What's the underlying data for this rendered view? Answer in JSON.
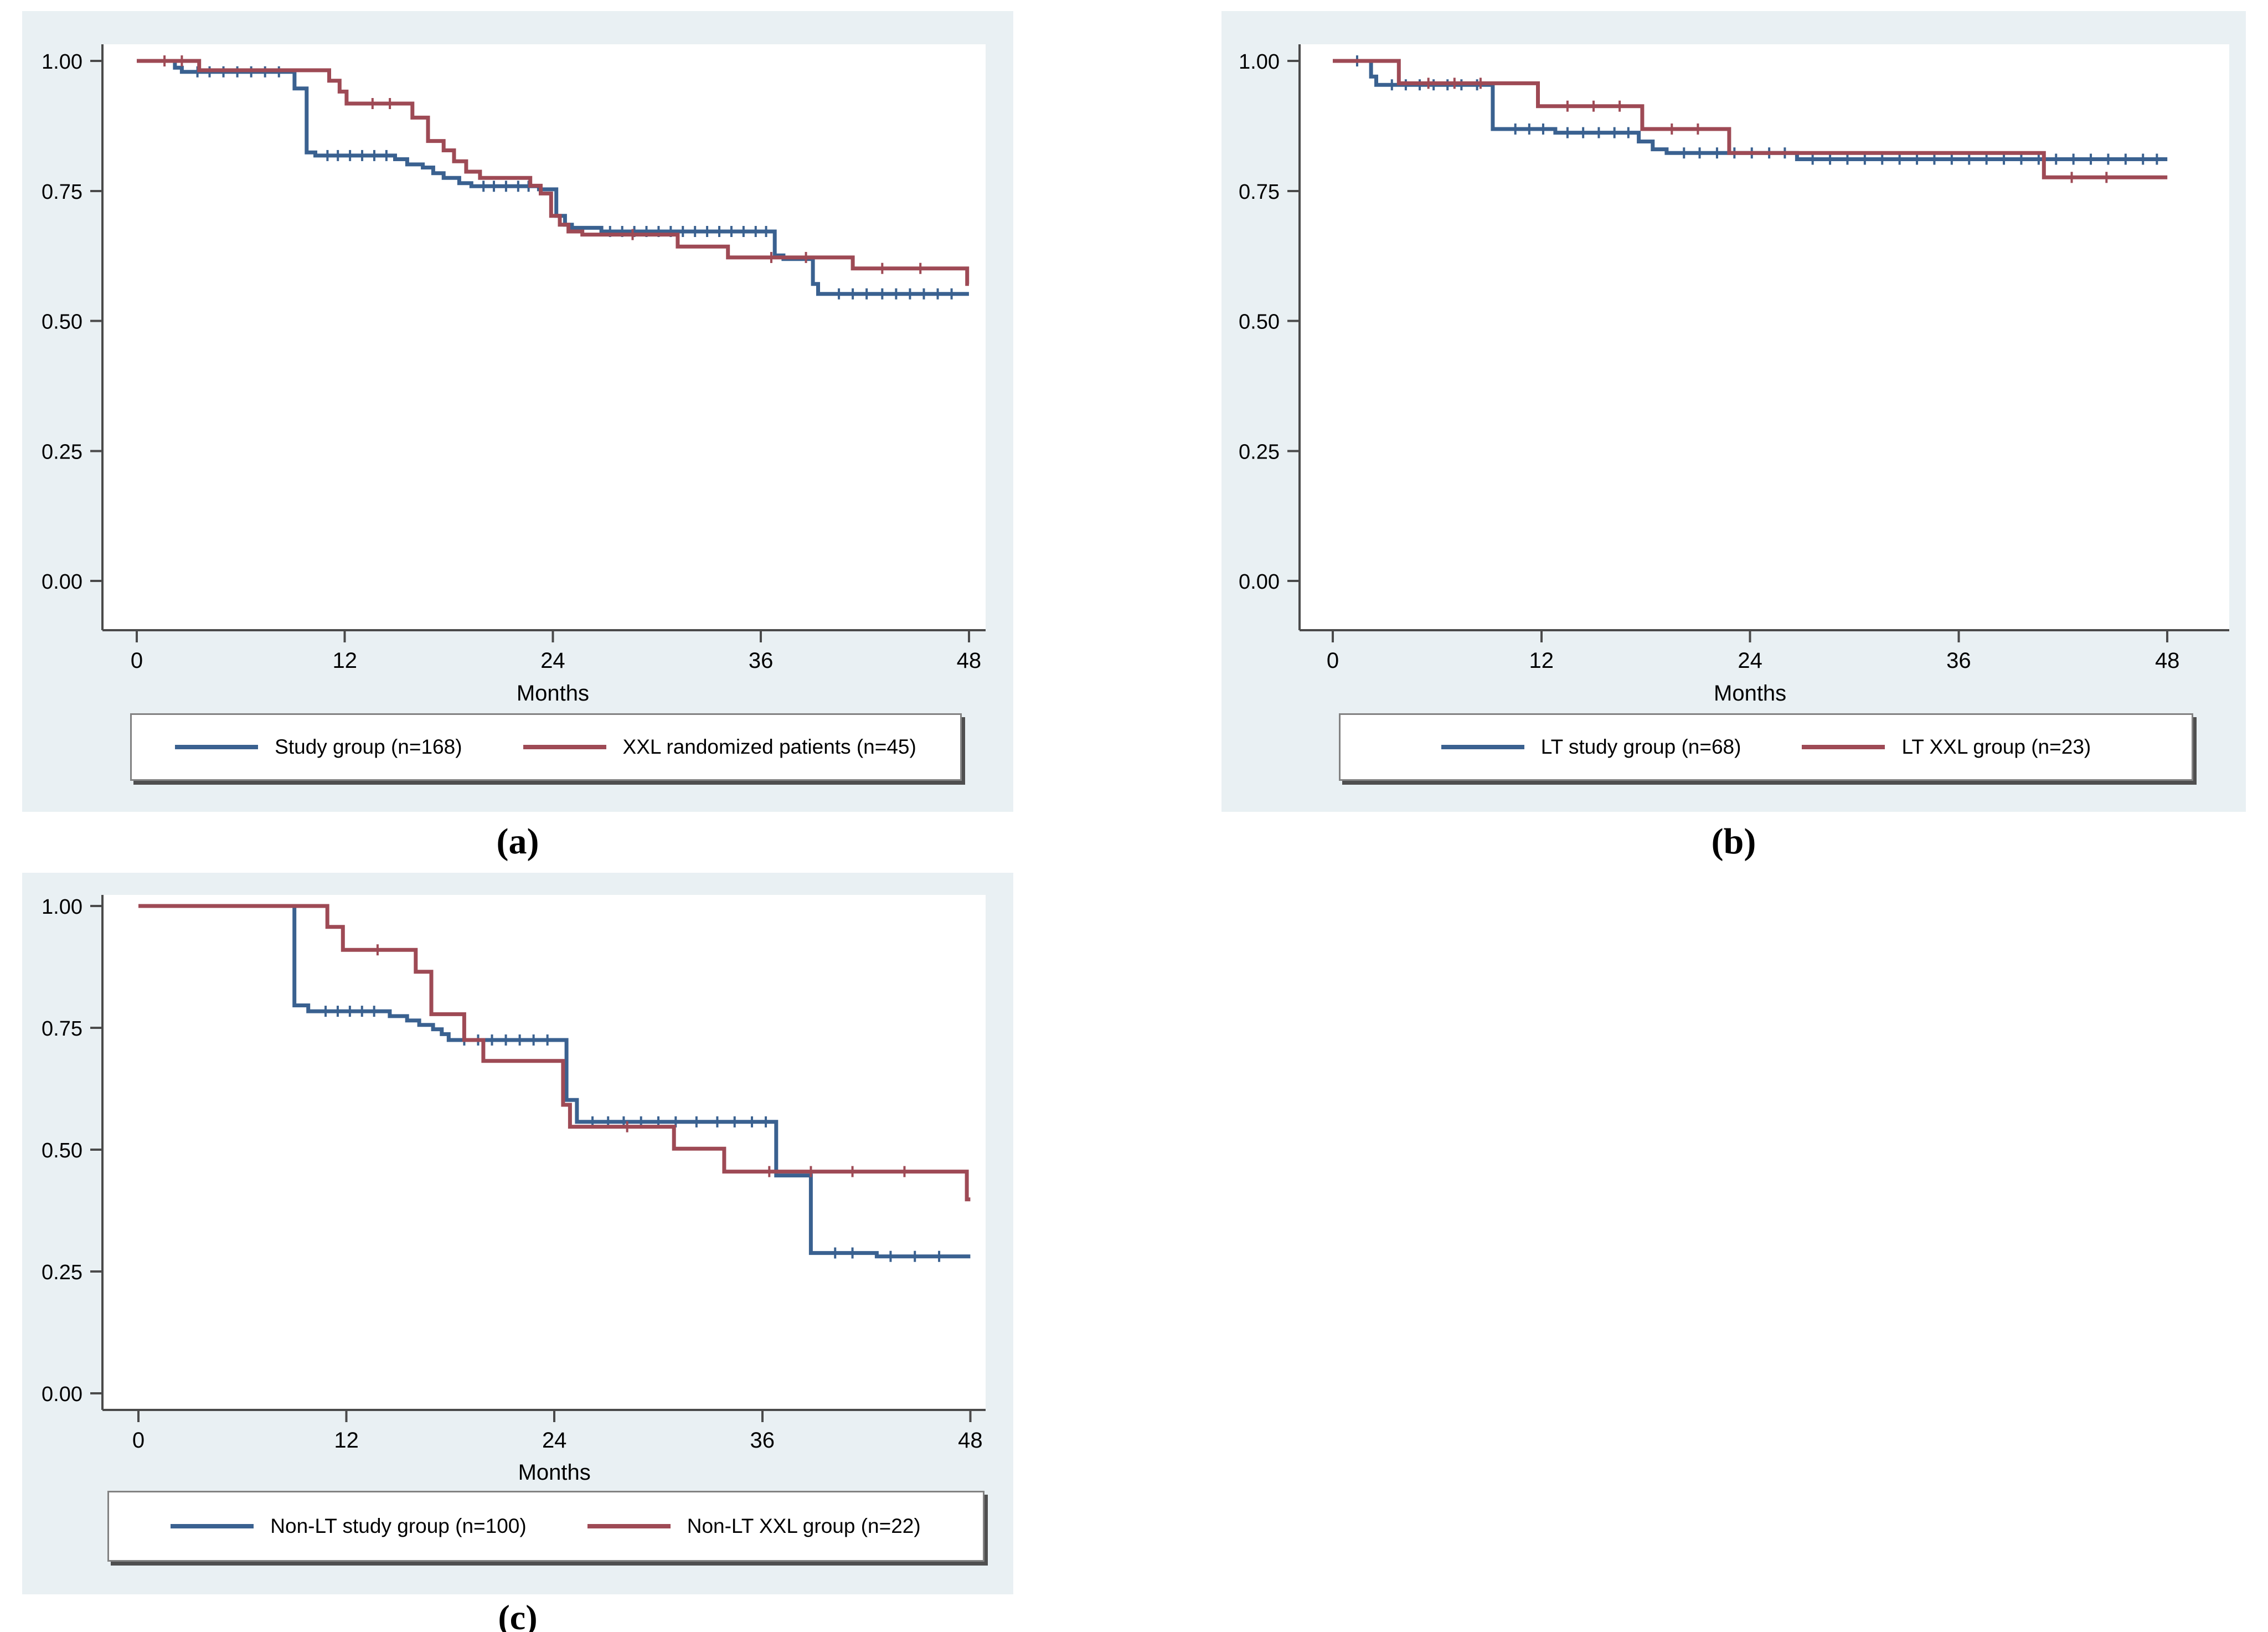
{
  "page": {
    "background": "#ffffff"
  },
  "colors": {
    "panel_bg": "#e9f0f3",
    "plot_bg": "#ffffff",
    "axis": "#4a4a4a",
    "tick_text": "#000000",
    "blue": "#3a6190",
    "red": "#9e4a55",
    "legend_border": "#828282",
    "legend_shadow": "#4f4f4f"
  },
  "panel_labels": [
    "(a)",
    "(b)",
    "(c)"
  ],
  "chart_data": [
    {
      "type": "line",
      "subtype": "kaplan-meier-step",
      "panel": "(a)",
      "title": "",
      "xlabel": "Months",
      "ylabel": "",
      "xlim": [
        0,
        48
      ],
      "ylim": [
        0,
        1
      ],
      "x_ticks": [
        0,
        12,
        24,
        36,
        48
      ],
      "y_ticks": [
        "1.00",
        "0.75",
        "0.50",
        "0.25",
        "0.00"
      ],
      "grid": false,
      "legend_position": "bottom",
      "series": [
        {
          "name": "Study group (n=168)",
          "color_key": "blue",
          "steps": [
            [
              0,
              1
            ],
            [
              2.2,
              0.987
            ],
            [
              2.6,
              0.979
            ],
            [
              9.1,
              0.947
            ],
            [
              9.8,
              0.824
            ],
            [
              10.3,
              0.818
            ],
            [
              14.9,
              0.811
            ],
            [
              15.6,
              0.801
            ],
            [
              16.5,
              0.795
            ],
            [
              17.1,
              0.784
            ],
            [
              17.7,
              0.775
            ],
            [
              18.6,
              0.765
            ],
            [
              19.3,
              0.759
            ],
            [
              23.2,
              0.753
            ],
            [
              24.2,
              0.702
            ],
            [
              24.7,
              0.685
            ],
            [
              25.1,
              0.679
            ],
            [
              26.8,
              0.672
            ],
            [
              36.8,
              0.626
            ],
            [
              37.3,
              0.619
            ],
            [
              39,
              0.571
            ],
            [
              39.3,
              0.552
            ],
            [
              48,
              0.552
            ]
          ],
          "censor_ticks": [
            3.5,
            4.2,
            5,
            5.8,
            6.6,
            7.4,
            8.2,
            11,
            11.6,
            12.3,
            13,
            13.7,
            14.4,
            20,
            20.6,
            21.3,
            22,
            22.6,
            27.3,
            28,
            28.7,
            29.4,
            30.1,
            30.8,
            31.5,
            32.2,
            32.9,
            33.6,
            34.3,
            35,
            35.7,
            36.3,
            40.5,
            41.3,
            42.1,
            43,
            43.8,
            44.6,
            45.4,
            46.2,
            47
          ]
        },
        {
          "name": "XXL randomized patients (n=45)",
          "color_key": "red",
          "steps": [
            [
              0,
              1
            ],
            [
              3.6,
              0.982
            ],
            [
              11.1,
              0.962
            ],
            [
              11.7,
              0.941
            ],
            [
              12.1,
              0.918
            ],
            [
              15.9,
              0.891
            ],
            [
              16.8,
              0.846
            ],
            [
              17.7,
              0.828
            ],
            [
              18.3,
              0.807
            ],
            [
              19,
              0.787
            ],
            [
              19.8,
              0.775
            ],
            [
              22.7,
              0.76
            ],
            [
              23.3,
              0.745
            ],
            [
              23.9,
              0.702
            ],
            [
              24.4,
              0.685
            ],
            [
              24.9,
              0.672
            ],
            [
              25.7,
              0.666
            ],
            [
              31.2,
              0.643
            ],
            [
              34.1,
              0.622
            ],
            [
              41.3,
              0.601
            ],
            [
              47.9,
              0.571
            ],
            [
              48,
              0.571
            ]
          ],
          "censor_ticks": [
            1.6,
            2.6,
            13.6,
            14.6,
            28.6,
            36.6,
            38.6,
            43,
            45.2
          ]
        }
      ]
    },
    {
      "type": "line",
      "subtype": "kaplan-meier-step",
      "panel": "(b)",
      "title": "",
      "xlabel": "Months",
      "ylabel": "",
      "xlim": [
        0,
        48
      ],
      "ylim": [
        0,
        1
      ],
      "x_ticks": [
        0,
        12,
        24,
        36,
        48
      ],
      "y_ticks": [
        "1.00",
        "0.75",
        "0.50",
        "0.25",
        "0.00"
      ],
      "grid": false,
      "legend_position": "bottom",
      "series": [
        {
          "name": "LT study group (n=68)",
          "color_key": "blue",
          "steps": [
            [
              0,
              1
            ],
            [
              2.2,
              0.97
            ],
            [
              2.5,
              0.954
            ],
            [
              9.2,
              0.869
            ],
            [
              12.8,
              0.862
            ],
            [
              17.6,
              0.845
            ],
            [
              18.4,
              0.83
            ],
            [
              19.2,
              0.823
            ],
            [
              26.7,
              0.811
            ],
            [
              48,
              0.811
            ]
          ],
          "censor_ticks": [
            1.4,
            3.4,
            4.2,
            5,
            5.8,
            6.6,
            7.4,
            8.3,
            10.5,
            11.3,
            12.1,
            13.5,
            14.4,
            15.3,
            16.2,
            17,
            20.2,
            21.1,
            22.1,
            23.1,
            24.1,
            25.1,
            26,
            27.6,
            28.6,
            29.6,
            30.6,
            31.6,
            32.6,
            33.6,
            34.6,
            35.6,
            36.6,
            37.6,
            38.6,
            39.6,
            40.6,
            41.6,
            42.6,
            43.6,
            44.6,
            45.6,
            46.6,
            47.4
          ]
        },
        {
          "name": "LT XXL group (n=23)",
          "color_key": "red",
          "steps": [
            [
              0,
              1
            ],
            [
              3.8,
              0.957
            ],
            [
              11.8,
              0.913
            ],
            [
              17.8,
              0.869
            ],
            [
              22.8,
              0.823
            ],
            [
              40.9,
              0.776
            ],
            [
              48,
              0.776
            ]
          ],
          "censor_ticks": [
            5.5,
            7,
            8.5,
            13.5,
            15,
            16.5,
            19.5,
            21,
            42.5,
            44.5
          ]
        }
      ]
    },
    {
      "type": "line",
      "subtype": "kaplan-meier-step",
      "panel": "(c)",
      "title": "",
      "xlabel": "Months",
      "ylabel": "",
      "xlim": [
        0,
        48
      ],
      "ylim": [
        0,
        1
      ],
      "x_ticks": [
        0,
        12,
        24,
        36,
        48
      ],
      "y_ticks": [
        "1.00",
        "0.75",
        "0.50",
        "0.25",
        "0.00"
      ],
      "grid": false,
      "legend_position": "bottom",
      "series": [
        {
          "name": "Non-LT study group (n=100)",
          "color_key": "blue",
          "steps": [
            [
              0,
              1
            ],
            [
              9,
              0.796
            ],
            [
              9.8,
              0.784
            ],
            [
              14.5,
              0.774
            ],
            [
              15.5,
              0.765
            ],
            [
              16.2,
              0.756
            ],
            [
              17,
              0.747
            ],
            [
              17.5,
              0.737
            ],
            [
              17.9,
              0.725
            ],
            [
              24.7,
              0.602
            ],
            [
              25.3,
              0.557
            ],
            [
              36.8,
              0.447
            ],
            [
              38.8,
              0.288
            ],
            [
              42.6,
              0.281
            ],
            [
              48,
              0.281
            ]
          ],
          "censor_ticks": [
            10.8,
            11.5,
            12.2,
            12.9,
            13.6,
            18.8,
            19.6,
            20.4,
            21.2,
            22,
            22.8,
            23.6,
            26.2,
            27.1,
            28,
            29,
            30,
            31,
            32.2,
            33.4,
            34.4,
            35.4,
            36.2,
            40.2,
            41.2,
            43.4,
            44.8,
            46.2
          ]
        },
        {
          "name": "Non-LT XXL group (n=22)",
          "color_key": "red",
          "steps": [
            [
              0,
              1
            ],
            [
              10.9,
              0.957
            ],
            [
              11.8,
              0.91
            ],
            [
              16,
              0.865
            ],
            [
              16.9,
              0.778
            ],
            [
              18.8,
              0.725
            ],
            [
              19.9,
              0.682
            ],
            [
              24.5,
              0.592
            ],
            [
              24.9,
              0.547
            ],
            [
              30.9,
              0.502
            ],
            [
              33.8,
              0.455
            ],
            [
              47.8,
              0.398
            ],
            [
              48,
              0.398
            ]
          ],
          "censor_ticks": [
            13.8,
            28.2,
            36.4,
            38.8,
            41.2,
            44.2
          ]
        }
      ]
    }
  ]
}
